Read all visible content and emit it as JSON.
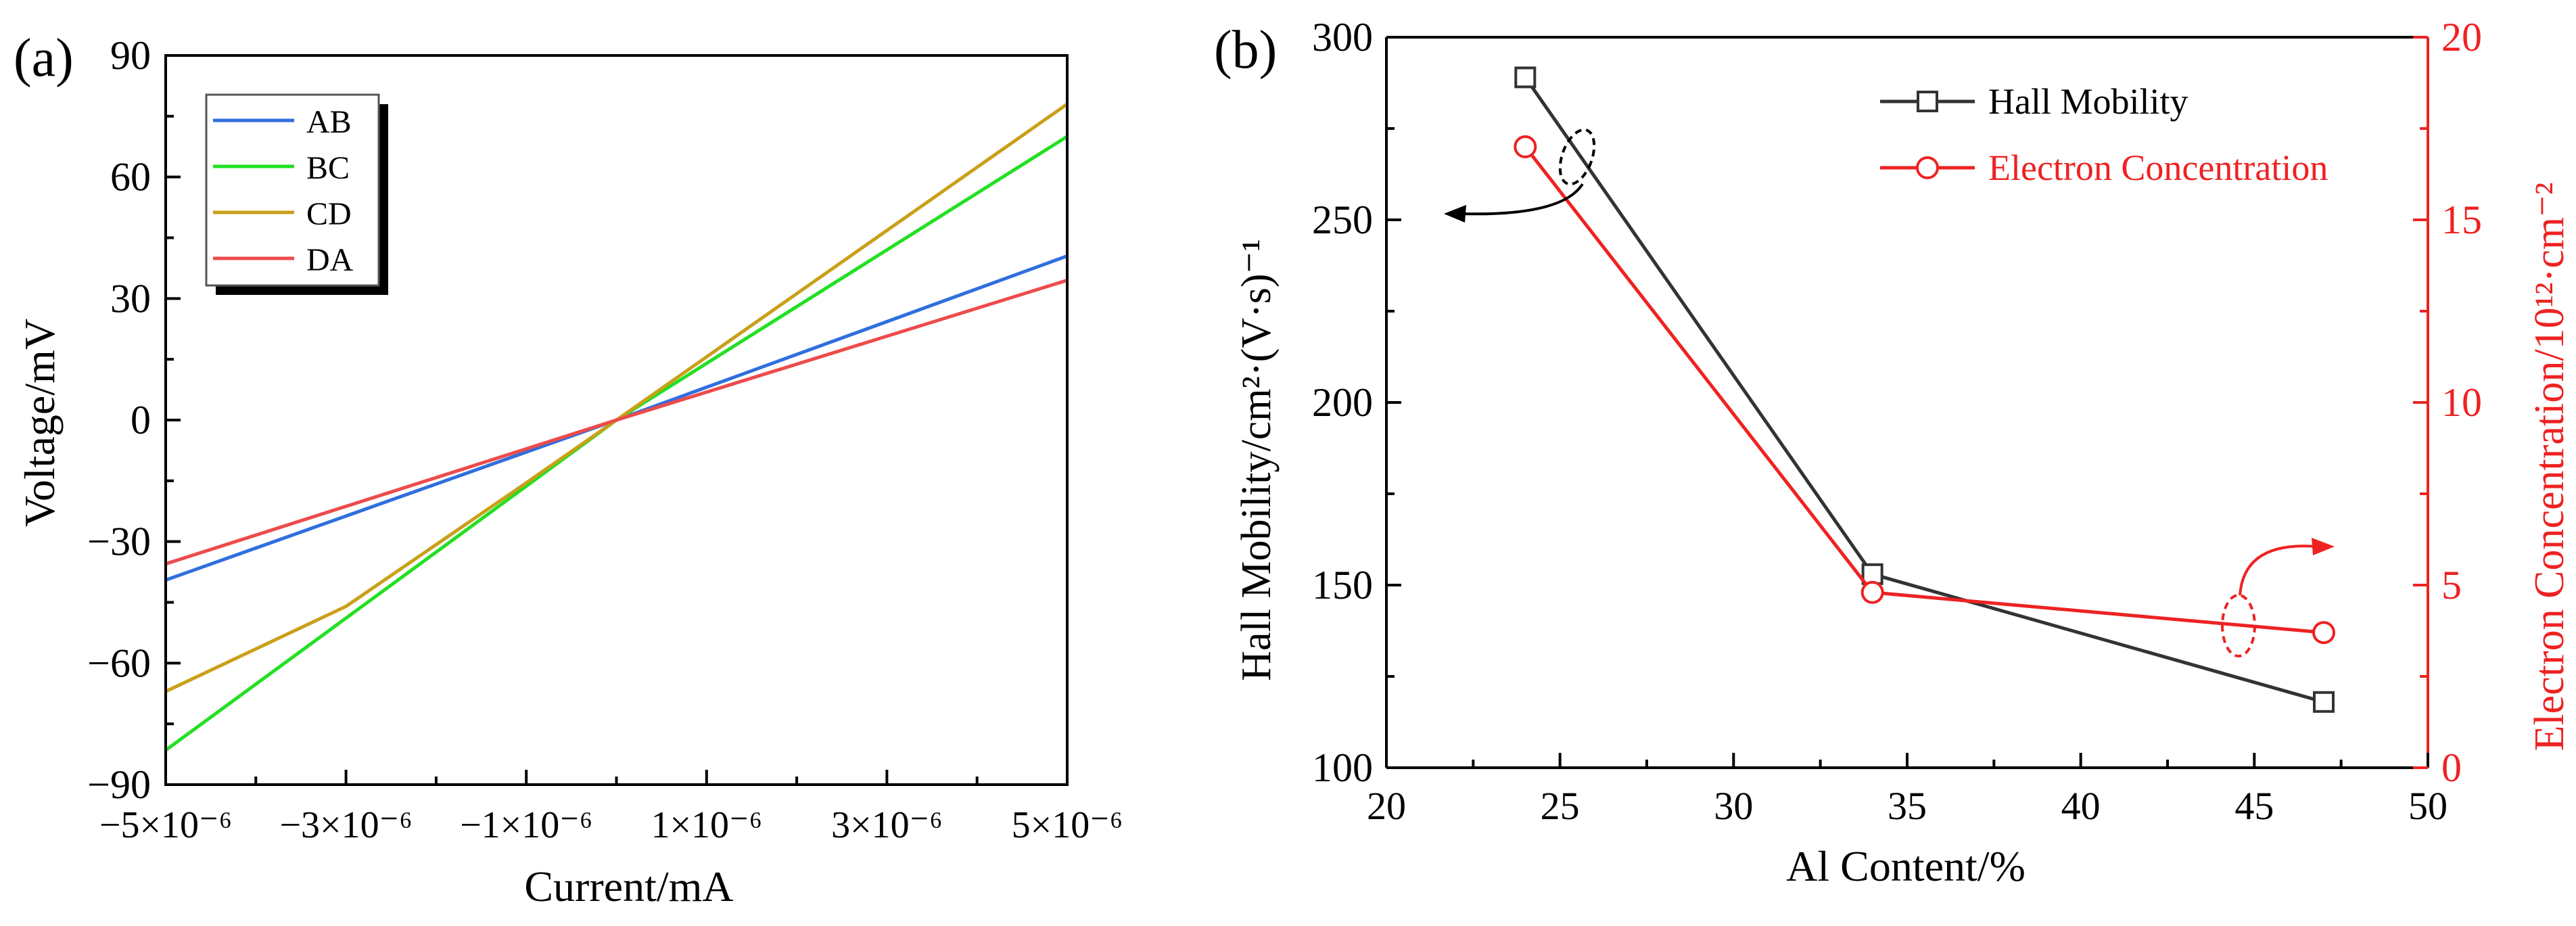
{
  "chart_data": [
    {
      "type": "line",
      "panel_label": "(a)",
      "xlabel": "Current/mA",
      "ylabel": "Voltage/mV",
      "xlim": [
        -5e-06,
        5e-06
      ],
      "ylim": [
        -90,
        90
      ],
      "x_ticks": [
        -5e-06,
        -3e-06,
        -1e-06,
        1e-06,
        3e-06,
        5e-06
      ],
      "x_tick_labels": [
        "−5×10⁻⁶",
        "−3×10⁻⁶",
        "−1×10⁻⁶",
        "1×10⁻⁶",
        "3×10⁻⁶",
        "5×10⁻⁶"
      ],
      "y_ticks": [
        -90,
        -60,
        -30,
        0,
        30,
        60,
        90
      ],
      "y_tick_labels": [
        "−90",
        "−60",
        "−30",
        "0",
        "30",
        "60",
        "90"
      ],
      "legend_position": "top-left",
      "series": [
        {
          "name": "AB",
          "color": "#2f6fde",
          "x": [
            -5e-06,
            0,
            5e-06
          ],
          "y": [
            -39.5,
            0,
            40.5
          ]
        },
        {
          "name": "BC",
          "color": "#22e022",
          "x": [
            -5e-06,
            0,
            5e-06
          ],
          "y": [
            -81.5,
            0,
            70
          ]
        },
        {
          "name": "CD",
          "color": "#c9a018",
          "x": [
            -5e-06,
            -3e-06,
            -1e-06,
            0,
            5e-06
          ],
          "y": [
            -67,
            -46,
            -15.5,
            0,
            78
          ]
        },
        {
          "name": "DA",
          "color": "#ee4b4b",
          "x": [
            -5e-06,
            0,
            5e-06
          ],
          "y": [
            -35.5,
            0,
            34.5
          ]
        }
      ]
    },
    {
      "type": "line",
      "panel_label": "(b)",
      "xlabel": "Al Content/%",
      "xlim": [
        20,
        50
      ],
      "x_ticks": [
        20,
        25,
        30,
        35,
        40,
        45,
        50
      ],
      "ylabel_left": "Hall Mobility/cm²·(V·s)⁻¹",
      "ylim_left": [
        100,
        300
      ],
      "y_ticks_left": [
        100,
        150,
        200,
        250,
        300
      ],
      "ylabel_right": "Electron Concentration/10¹²·cm⁻²",
      "ylim_right": [
        0,
        20
      ],
      "y_ticks_right": [
        0,
        5,
        10,
        15,
        20
      ],
      "legend_position": "top-right",
      "series": [
        {
          "name": "Hall Mobility",
          "axis": "left",
          "marker": "square",
          "color": "#333333",
          "x": [
            24,
            34,
            47
          ],
          "y": [
            289,
            153,
            118
          ]
        },
        {
          "name": "Electron Concentration",
          "axis": "right",
          "marker": "circle",
          "color": "#ee2222",
          "x": [
            24,
            34,
            47
          ],
          "y": [
            17.0,
            4.8,
            3.7
          ]
        }
      ]
    }
  ]
}
